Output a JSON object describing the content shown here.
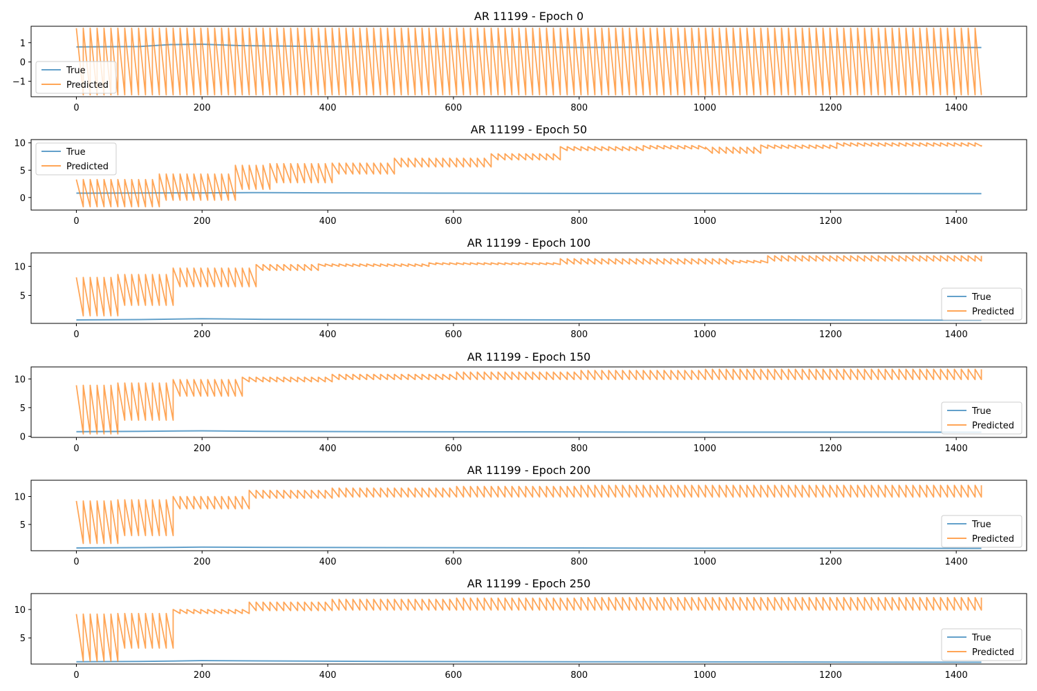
{
  "colors": {
    "true_series": "#1f77b4",
    "predicted_series": "#ff7f0e",
    "axes": "#000000",
    "legend_edge": "#cccccc"
  },
  "chart_data": [
    {
      "type": "line",
      "title": "AR 11199 - Epoch 0",
      "xlabel": "",
      "ylabel": "",
      "xlim": [
        -72,
        1512
      ],
      "ylim": [
        -1.8,
        1.85
      ],
      "xticks": [
        0,
        200,
        400,
        600,
        800,
        1000,
        1200,
        1400
      ],
      "yticks": [
        -1,
        0,
        1
      ],
      "ytick_labels": [
        "−1",
        "0",
        "1"
      ],
      "grid": false,
      "legend": "lower-left",
      "series": [
        {
          "name": "True",
          "points": [
            [
              0,
              0.78
            ],
            [
              100,
              0.8
            ],
            [
              150,
              0.9
            ],
            [
              200,
              0.92
            ],
            [
              260,
              0.85
            ],
            [
              400,
              0.8
            ],
            [
              600,
              0.8
            ],
            [
              800,
              0.76
            ],
            [
              1000,
              0.77
            ],
            [
              1200,
              0.77
            ],
            [
              1440,
              0.75
            ]
          ]
        },
        {
          "name": "Predicted",
          "pattern": "sawtooth",
          "x_start": 0,
          "x_end": 1440,
          "period": 11,
          "segments": [
            [
              0,
              1440,
              1.75,
              -1.7
            ]
          ],
          "end_value": -1.7
        }
      ]
    },
    {
      "type": "line",
      "title": "AR 11199 - Epoch 50",
      "xlabel": "",
      "ylabel": "",
      "xlim": [
        -72,
        1512
      ],
      "ylim": [
        -2.3,
        10.6
      ],
      "xticks": [
        0,
        200,
        400,
        600,
        800,
        1000,
        1200,
        1400
      ],
      "yticks": [
        0,
        5,
        10
      ],
      "ytick_labels": [
        "0",
        "5",
        "10"
      ],
      "grid": false,
      "legend": "upper-left",
      "series": [
        {
          "name": "True",
          "points": [
            [
              0,
              0.8
            ],
            [
              200,
              0.85
            ],
            [
              280,
              0.9
            ],
            [
              400,
              0.85
            ],
            [
              600,
              0.8
            ],
            [
              800,
              0.75
            ],
            [
              1000,
              0.75
            ],
            [
              1200,
              0.72
            ],
            [
              1440,
              0.7
            ]
          ]
        },
        {
          "name": "Predicted",
          "pattern": "sawtooth",
          "x_start": 0,
          "x_end": 1440,
          "period": 11,
          "segments": [
            [
              0,
              130,
              3.3,
              -1.7
            ],
            [
              130,
              250,
              4.3,
              -0.5
            ],
            [
              250,
              300,
              5.9,
              1.5
            ],
            [
              300,
              400,
              6.2,
              2.7
            ],
            [
              400,
              500,
              6.3,
              4.3
            ],
            [
              500,
              650,
              7.2,
              5.6
            ],
            [
              650,
              760,
              8.0,
              6.9
            ],
            [
              760,
              900,
              9.3,
              8.6
            ],
            [
              900,
              1000,
              9.5,
              8.9
            ],
            [
              1000,
              1080,
              9.2,
              8.1
            ],
            [
              1080,
              1200,
              9.6,
              9.0
            ],
            [
              1200,
              1440,
              10.0,
              9.4
            ]
          ],
          "end_value": 9.6
        }
      ]
    },
    {
      "type": "line",
      "title": "AR 11199 - Epoch 100",
      "xlabel": "",
      "ylabel": "",
      "xlim": [
        -72,
        1512
      ],
      "ylim": [
        0.2,
        12.3
      ],
      "xticks": [
        0,
        200,
        400,
        600,
        800,
        1000,
        1200,
        1400
      ],
      "yticks": [
        5,
        10
      ],
      "ytick_labels": [
        "5",
        "10"
      ],
      "grid": false,
      "legend": "lower-right",
      "series": [
        {
          "name": "True",
          "points": [
            [
              0,
              0.8
            ],
            [
              100,
              0.85
            ],
            [
              200,
              1.0
            ],
            [
              300,
              0.9
            ],
            [
              500,
              0.85
            ],
            [
              800,
              0.8
            ],
            [
              1000,
              0.8
            ],
            [
              1200,
              0.78
            ],
            [
              1440,
              0.75
            ]
          ]
        },
        {
          "name": "Predicted",
          "pattern": "sawtooth",
          "x_start": 0,
          "x_end": 1440,
          "period": 11,
          "segments": [
            [
              0,
              60,
              8.1,
              1.5
            ],
            [
              60,
              150,
              8.6,
              3.3
            ],
            [
              150,
              280,
              9.7,
              6.5
            ],
            [
              280,
              380,
              10.3,
              9.3
            ],
            [
              380,
              560,
              10.4,
              10.0
            ],
            [
              560,
              760,
              10.6,
              10.3
            ],
            [
              760,
              1040,
              11.3,
              10.4
            ],
            [
              1040,
              1100,
              11.0,
              10.6
            ],
            [
              1100,
              1440,
              11.8,
              10.9
            ]
          ],
          "end_value": 11.8
        }
      ]
    },
    {
      "type": "line",
      "title": "AR 11199 - Epoch 150",
      "xlabel": "",
      "ylabel": "",
      "xlim": [
        -72,
        1512
      ],
      "ylim": [
        -0.2,
        12.1
      ],
      "xticks": [
        0,
        200,
        400,
        600,
        800,
        1000,
        1200,
        1400
      ],
      "yticks": [
        0,
        5,
        10
      ],
      "ytick_labels": [
        "0",
        "5",
        "10"
      ],
      "grid": false,
      "legend": "lower-right",
      "series": [
        {
          "name": "True",
          "points": [
            [
              0,
              0.8
            ],
            [
              100,
              0.85
            ],
            [
              200,
              0.95
            ],
            [
              300,
              0.85
            ],
            [
              500,
              0.8
            ],
            [
              800,
              0.75
            ],
            [
              1000,
              0.72
            ],
            [
              1200,
              0.72
            ],
            [
              1440,
              0.7
            ]
          ]
        },
        {
          "name": "Predicted",
          "pattern": "sawtooth",
          "x_start": 0,
          "x_end": 1440,
          "period": 11,
          "segments": [
            [
              0,
              60,
              8.9,
              0.4
            ],
            [
              60,
              150,
              9.3,
              2.8
            ],
            [
              150,
              260,
              9.9,
              7.0
            ],
            [
              260,
              400,
              10.3,
              9.5
            ],
            [
              400,
              600,
              10.8,
              9.9
            ],
            [
              600,
              800,
              11.2,
              9.9
            ],
            [
              800,
              1000,
              11.5,
              9.9
            ],
            [
              1000,
              1440,
              11.7,
              9.9
            ]
          ],
          "end_value": 11.7
        }
      ]
    },
    {
      "type": "line",
      "title": "AR 11199 - Epoch 200",
      "xlabel": "",
      "ylabel": "",
      "xlim": [
        -72,
        1512
      ],
      "ylim": [
        0.3,
        12.9
      ],
      "xticks": [
        0,
        200,
        400,
        600,
        800,
        1000,
        1200,
        1400
      ],
      "yticks": [
        5,
        10
      ],
      "ytick_labels": [
        "5",
        "10"
      ],
      "grid": false,
      "legend": "lower-right",
      "series": [
        {
          "name": "True",
          "points": [
            [
              0,
              0.8
            ],
            [
              100,
              0.85
            ],
            [
              200,
              0.95
            ],
            [
              300,
              0.9
            ],
            [
              500,
              0.85
            ],
            [
              800,
              0.8
            ],
            [
              1000,
              0.75
            ],
            [
              1200,
              0.75
            ],
            [
              1440,
              0.72
            ]
          ]
        },
        {
          "name": "Predicted",
          "pattern": "sawtooth",
          "x_start": 0,
          "x_end": 1440,
          "period": 11,
          "segments": [
            [
              0,
              60,
              9.2,
              1.6
            ],
            [
              60,
              150,
              9.4,
              3.0
            ],
            [
              150,
              270,
              10.0,
              7.8
            ],
            [
              270,
              400,
              11.1,
              9.7
            ],
            [
              400,
              600,
              11.5,
              9.9
            ],
            [
              600,
              800,
              11.8,
              9.9
            ],
            [
              800,
              1440,
              12.0,
              9.9
            ]
          ],
          "end_value": 12.0
        }
      ]
    },
    {
      "type": "line",
      "title": "AR 11199 - Epoch 250",
      "xlabel": "",
      "ylabel": "",
      "xlim": [
        -72,
        1512
      ],
      "ylim": [
        0.4,
        12.8
      ],
      "xticks": [
        0,
        200,
        400,
        600,
        800,
        1000,
        1200,
        1400
      ],
      "yticks": [
        5,
        10
      ],
      "ytick_labels": [
        "5",
        "10"
      ],
      "grid": false,
      "legend": "lower-right",
      "series": [
        {
          "name": "True",
          "points": [
            [
              0,
              0.8
            ],
            [
              100,
              0.85
            ],
            [
              200,
              1.0
            ],
            [
              300,
              0.95
            ],
            [
              500,
              0.85
            ],
            [
              800,
              0.8
            ],
            [
              1000,
              0.78
            ],
            [
              1200,
              0.75
            ],
            [
              1440,
              0.72
            ]
          ]
        },
        {
          "name": "Predicted",
          "pattern": "sawtooth",
          "x_start": 0,
          "x_end": 1440,
          "period": 11,
          "segments": [
            [
              0,
              60,
              9.2,
              0.9
            ],
            [
              60,
              150,
              9.3,
              3.2
            ],
            [
              150,
              270,
              10.0,
              9.3
            ],
            [
              270,
              400,
              11.3,
              9.8
            ],
            [
              400,
              600,
              11.8,
              9.9
            ],
            [
              600,
              800,
              12.0,
              9.9
            ],
            [
              800,
              1440,
              12.1,
              9.9
            ]
          ],
          "end_value": 12.1
        }
      ]
    }
  ]
}
